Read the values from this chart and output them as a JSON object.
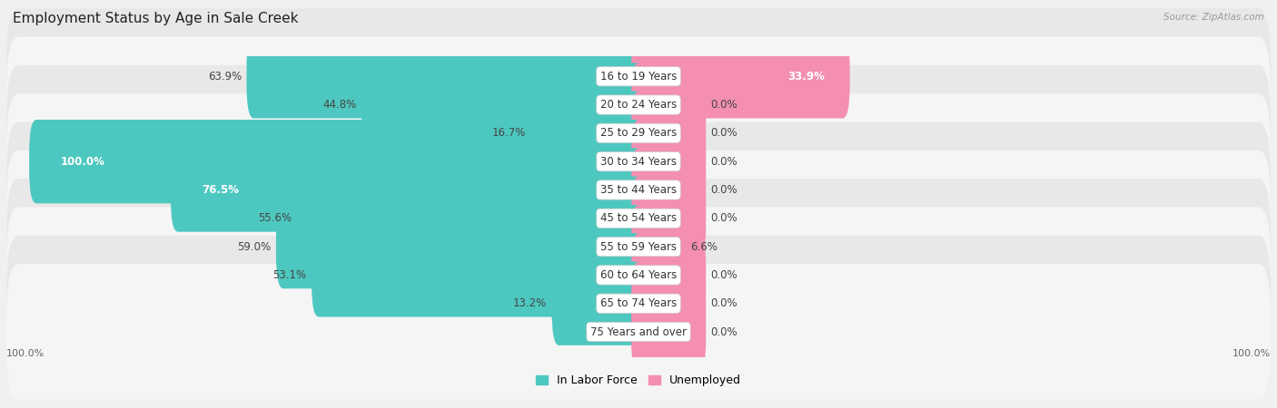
{
  "title": "Employment Status by Age in Sale Creek",
  "source": "Source: ZipAtlas.com",
  "categories": [
    "16 to 19 Years",
    "20 to 24 Years",
    "25 to 29 Years",
    "30 to 34 Years",
    "35 to 44 Years",
    "45 to 54 Years",
    "55 to 59 Years",
    "60 to 64 Years",
    "65 to 74 Years",
    "75 Years and over"
  ],
  "labor_force": [
    63.9,
    44.8,
    16.7,
    100.0,
    76.5,
    55.6,
    59.0,
    53.1,
    13.2,
    0.0
  ],
  "unemployed": [
    33.9,
    0.0,
    0.0,
    0.0,
    0.0,
    0.0,
    6.6,
    0.0,
    0.0,
    0.0
  ],
  "labor_force_color": "#4dc8c0",
  "unemployed_color": "#f48fb1",
  "background_color": "#f0f0f0",
  "row_even_color": "#e8e8e8",
  "row_odd_color": "#f5f5f5",
  "title_fontsize": 11,
  "cat_label_fontsize": 8.5,
  "bar_label_fontsize": 8.5,
  "legend_fontsize": 9,
  "axis_label_fontsize": 8,
  "scale": 100,
  "zero_bar_size": 10.0
}
